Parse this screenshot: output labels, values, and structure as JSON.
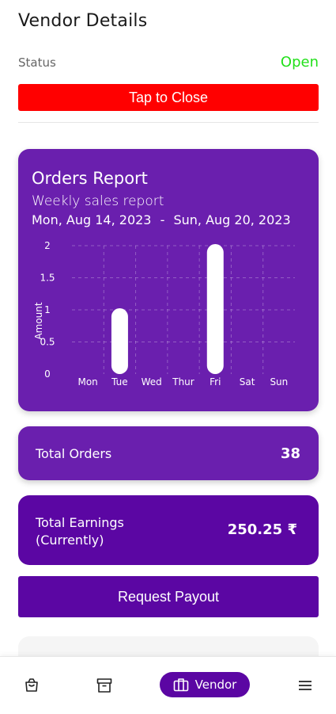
{
  "header": {
    "title": "Vendor Details"
  },
  "status": {
    "label": "Status",
    "value": "Open",
    "value_color": "#22e01a",
    "close_label": "Tap to Close",
    "close_color": "#ff0000"
  },
  "report": {
    "title": "Orders Report",
    "subtitle": "Weekly sales report",
    "date_start": "Mon, Aug 14, 2023",
    "date_sep": "-",
    "date_end": "Sun, Aug 20, 2023",
    "card_color": "#6a1fae"
  },
  "chart_data": {
    "type": "bar",
    "categories": [
      "Mon",
      "Tue",
      "Wed",
      "Thur",
      "Fri",
      "Sat",
      "Sun"
    ],
    "values": [
      0,
      1,
      0,
      0,
      2,
      0,
      0
    ],
    "ylabel": "Amount",
    "ylim": [
      0,
      2
    ],
    "yticks": [
      "0",
      "0.5",
      "1",
      "1.5",
      "2"
    ],
    "grid": true,
    "bar_color": "#ffffff"
  },
  "orders": {
    "label": "Total Orders",
    "value": "38"
  },
  "earnings": {
    "label_line1": "Total Earnings",
    "label_line2": "(Currently)",
    "value": "250.25 ₹"
  },
  "payout": {
    "label": "Request Payout"
  },
  "nav": {
    "items": [
      {
        "icon": "shopping-bag-icon"
      },
      {
        "icon": "archive-box-icon"
      },
      {
        "icon": "briefcase-icon",
        "label": "Vendor",
        "active": true
      },
      {
        "icon": "menu-icon"
      }
    ],
    "active_color": "#5b06a3"
  }
}
